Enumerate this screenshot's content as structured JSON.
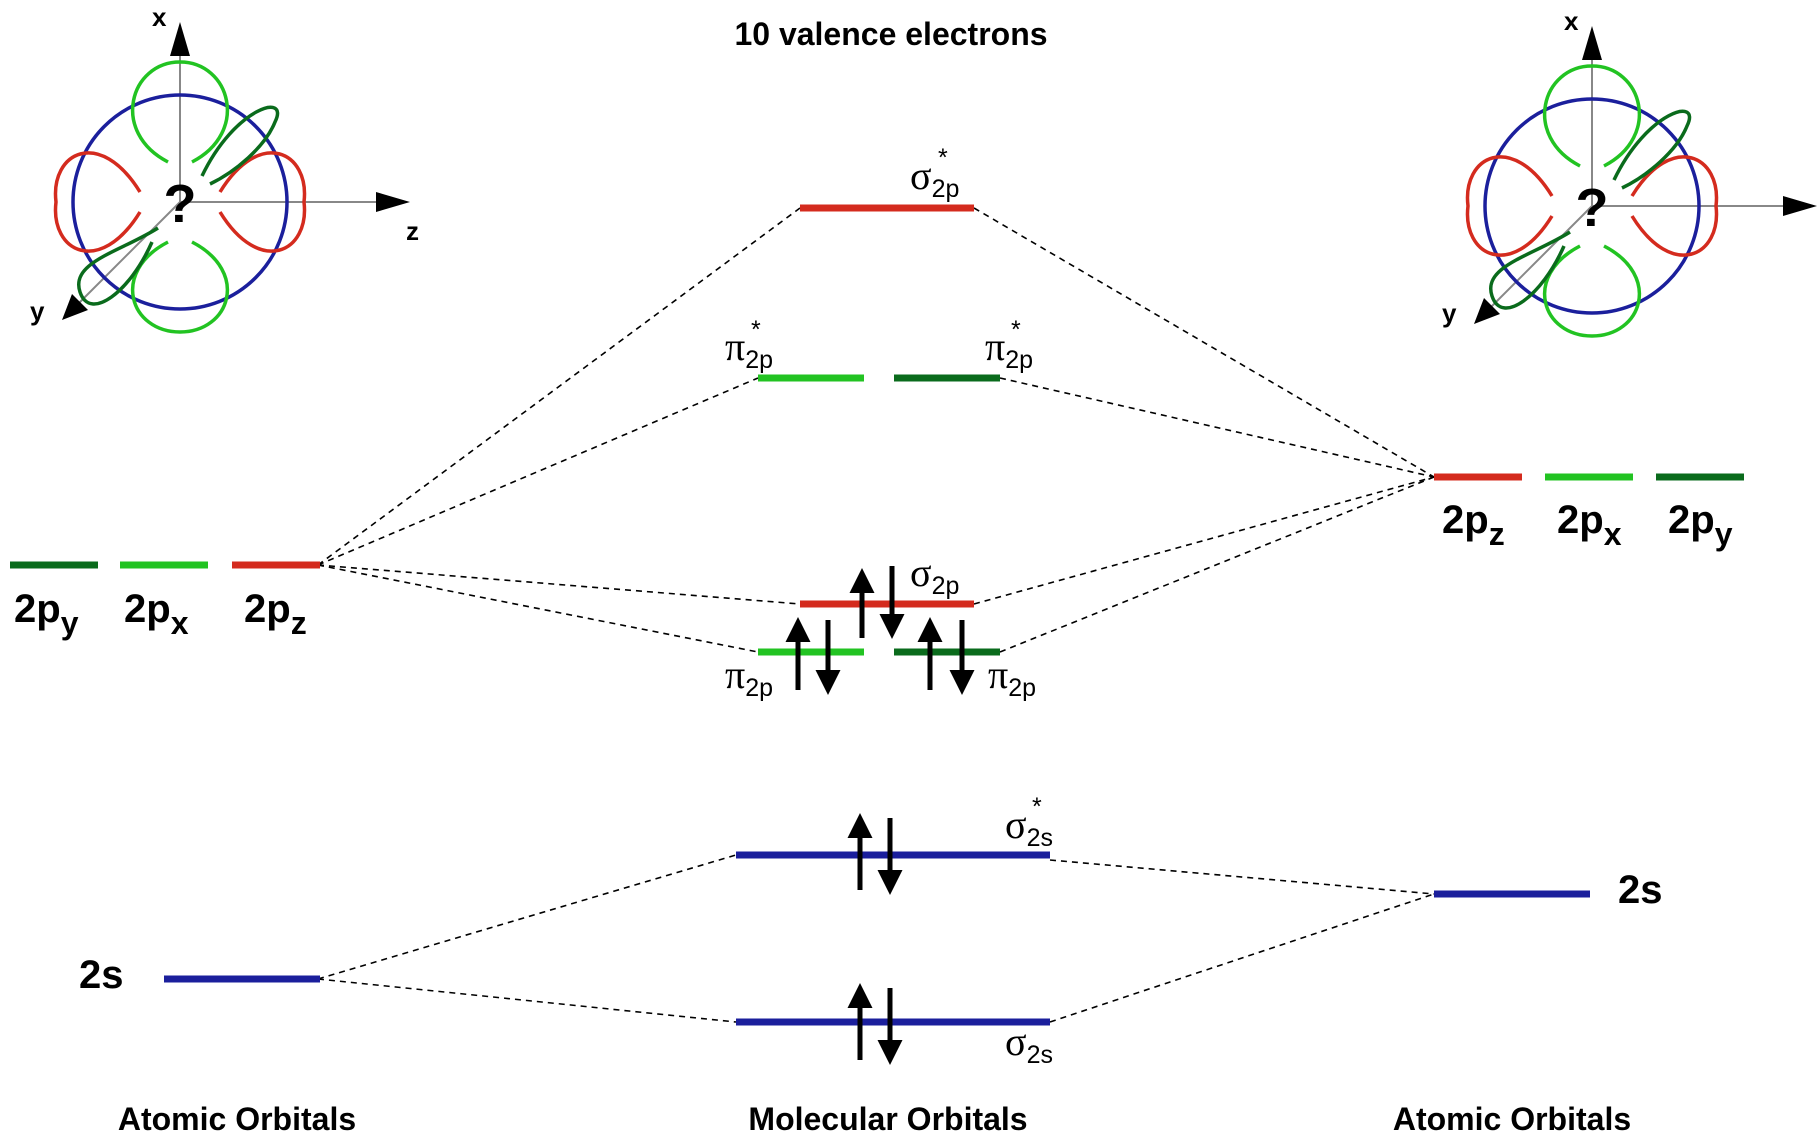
{
  "title": "10 valence electrons",
  "footer": {
    "left": "Atomic Orbitals",
    "center": "Molecular Orbitals",
    "right": "Atomic Orbitals"
  },
  "colors": {
    "pz": "#d42b1e",
    "px": "#22c322",
    "py": "#0a6b1c",
    "s": "#1b1f9c",
    "axis": "#888888"
  },
  "left_atom": {
    "p_labels": [
      {
        "base": "2p",
        "sub": "y"
      },
      {
        "base": "2p",
        "sub": "x"
      },
      {
        "base": "2p",
        "sub": "z"
      }
    ],
    "s_label": "2s"
  },
  "right_atom": {
    "p_labels": [
      {
        "base": "2p",
        "sub": "z"
      },
      {
        "base": "2p",
        "sub": "x"
      },
      {
        "base": "2p",
        "sub": "y"
      }
    ],
    "s_label": "2s"
  },
  "molecular_orbitals": {
    "sigma_2p_star": {
      "symbol": "σ",
      "sub": "2p",
      "sup": "*"
    },
    "pi_2p_star_left": {
      "symbol": "π",
      "sub": "2p",
      "sup": "*"
    },
    "pi_2p_star_right": {
      "symbol": "π",
      "sub": "2p",
      "sup": "*"
    },
    "sigma_2p": {
      "symbol": "σ",
      "sub": "2p",
      "sup": ""
    },
    "pi_2p_left": {
      "symbol": "π",
      "sub": "2p",
      "sup": ""
    },
    "pi_2p_right": {
      "symbol": "π",
      "sub": "2p",
      "sup": ""
    },
    "sigma_2s_star": {
      "symbol": "σ",
      "sub": "2s",
      "sup": "*"
    },
    "sigma_2s": {
      "symbol": "σ",
      "sub": "2s",
      "sup": ""
    }
  },
  "axes_labels": {
    "x": "x",
    "y": "y",
    "z": "z"
  },
  "orbital_icon_symbol": "?"
}
